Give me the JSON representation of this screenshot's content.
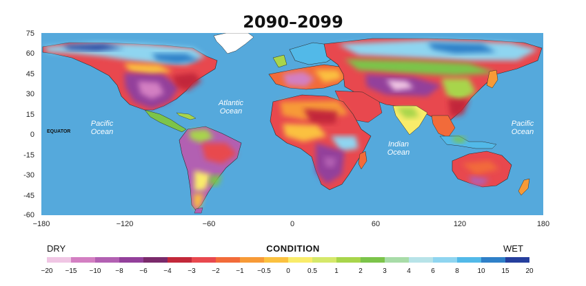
{
  "title": "2090–2099",
  "axes": {
    "y_ticks": [
      "75",
      "60",
      "45",
      "30",
      "15",
      "0",
      "-15",
      "-30",
      "-45",
      "-60"
    ],
    "x_ticks": [
      "−180",
      "−120",
      "−60",
      "0",
      "60",
      "120",
      "180"
    ]
  },
  "oceans": {
    "atlantic_line1": "Atlantic",
    "atlantic_line2": "Ocean",
    "pacific_west_line1": "Pacific",
    "pacific_west_line2": "Ocean",
    "indian_line1": "Indian",
    "indian_line2": "Ocean",
    "pacific_east_line1": "Pacific",
    "pacific_east_line2": "Ocean"
  },
  "equator_label": "EQUATOR",
  "legend": {
    "dry": "DRY",
    "wet": "WET",
    "title": "CONDITION",
    "ticks": [
      "−20",
      "−15",
      "−10",
      "−8",
      "−6",
      "−4",
      "−3",
      "−2",
      "−1",
      "−0.5",
      "0",
      "0.5",
      "1",
      "2",
      "3",
      "4",
      "6",
      "8",
      "10",
      "15",
      "20"
    ],
    "colors": [
      "#f0c6e4",
      "#d37fc2",
      "#b260b2",
      "#93409b",
      "#7a2a6b",
      "#c2283a",
      "#e8484e",
      "#f26b3a",
      "#f79a37",
      "#fbc13f",
      "#f9ec6a",
      "#d5e86a",
      "#a8d54b",
      "#7cc44a",
      "#a8dca8",
      "#b7e3e8",
      "#8fd5f0",
      "#52b9e8",
      "#2f80c8",
      "#253f9d"
    ]
  },
  "map_colors": {
    "ocean": "#55a9dc",
    "border": "#2a2a2a"
  }
}
